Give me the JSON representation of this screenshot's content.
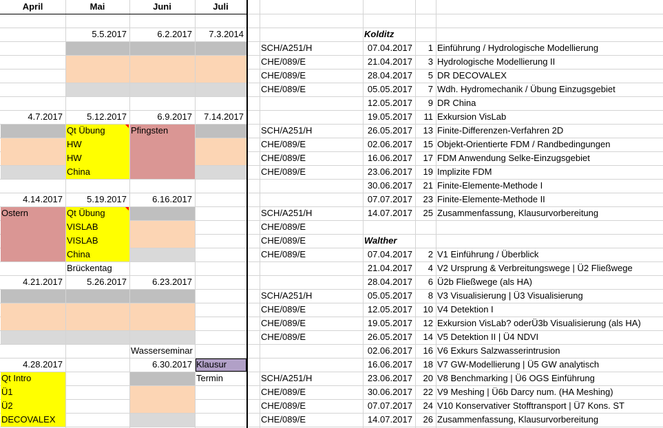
{
  "left_table": {
    "headers": [
      "April",
      "Mai",
      "Juni",
      "Juli"
    ],
    "dates": [
      {
        "row": 2,
        "col": 1,
        "text": "5.5.2017"
      },
      {
        "row": 2,
        "col": 2,
        "text": "6.2.2017"
      },
      {
        "row": 2,
        "col": 3,
        "text": "7.3.2014"
      },
      {
        "row": 8,
        "col": 0,
        "text": "4.7.2017"
      },
      {
        "row": 8,
        "col": 1,
        "text": "5.12.2017"
      },
      {
        "row": 8,
        "col": 2,
        "text": "6.9.2017"
      },
      {
        "row": 8,
        "col": 3,
        "text": "7.14.2017"
      },
      {
        "row": 14,
        "col": 0,
        "text": "4.14.2017"
      },
      {
        "row": 14,
        "col": 1,
        "text": "5.19.2017"
      },
      {
        "row": 14,
        "col": 2,
        "text": "6.16.2017"
      },
      {
        "row": 20,
        "col": 0,
        "text": "4.21.2017"
      },
      {
        "row": 20,
        "col": 1,
        "text": "5.26.2017"
      },
      {
        "row": 20,
        "col": 2,
        "text": "6.23.2017"
      },
      {
        "row": 26,
        "col": 0,
        "text": "4.28.2017"
      },
      {
        "row": 26,
        "col": 2,
        "text": "6.30.2017"
      }
    ],
    "labels": [
      {
        "row": 9,
        "col": 1,
        "text": "Qt Übung"
      },
      {
        "row": 10,
        "col": 1,
        "text": "HW"
      },
      {
        "row": 11,
        "col": 1,
        "text": "HW"
      },
      {
        "row": 12,
        "col": 1,
        "text": "China"
      },
      {
        "row": 9,
        "col": 2,
        "text": "Pfingsten"
      },
      {
        "row": 15,
        "col": 0,
        "text": "Ostern"
      },
      {
        "row": 15,
        "col": 1,
        "text": "Qt Übung"
      },
      {
        "row": 16,
        "col": 1,
        "text": "VISLAB"
      },
      {
        "row": 17,
        "col": 1,
        "text": "VISLAB"
      },
      {
        "row": 18,
        "col": 1,
        "text": "China"
      },
      {
        "row": 19,
        "col": 1,
        "text": "Brückentag"
      },
      {
        "row": 25,
        "col": 2,
        "text": "Wasserseminar"
      },
      {
        "row": 26,
        "col": 3,
        "text": "Klausur"
      },
      {
        "row": 27,
        "col": 3,
        "text": "Termin"
      },
      {
        "row": 27,
        "col": 0,
        "text": "Qt Intro"
      },
      {
        "row": 28,
        "col": 0,
        "text": "Ü1"
      },
      {
        "row": 29,
        "col": 0,
        "text": "Ü2"
      },
      {
        "row": 30,
        "col": 0,
        "text": "DECOVALEX"
      }
    ],
    "fill_colors": {
      "grey": "#bfbfbf",
      "peach": "#fcd5b4",
      "light_grey": "#d9d9d9",
      "yellow": "#ffff00",
      "rose": "#da9694",
      "purple": "#b1a0c7"
    }
  },
  "kolditz": {
    "title": "Kolditz",
    "rows": [
      {
        "room": "SCH/A251/H",
        "date": "07.04.2017",
        "num": "1",
        "topic": "Einführung / Hydrologische Modellierung"
      },
      {
        "room": "CHE/089/E",
        "date": "21.04.2017",
        "num": "3",
        "topic": "Hydrologische Modellierung II"
      },
      {
        "room": "CHE/089/E",
        "date": "28.04.2017",
        "num": "5",
        "topic": "DR DECOVALEX"
      },
      {
        "room": "CHE/089/E",
        "date": "05.05.2017",
        "num": "7",
        "topic": "Wdh. Hydromechanik / Übung Einzugsgebiet"
      },
      {
        "room": "",
        "date": "12.05.2017",
        "num": "9",
        "topic": "DR China"
      },
      {
        "room": "",
        "date": "19.05.2017",
        "num": "11",
        "topic": "Exkursion VisLab"
      },
      {
        "room": "SCH/A251/H",
        "date": "26.05.2017",
        "num": "13",
        "topic": "Finite-Differenzen-Verfahren 2D"
      },
      {
        "room": "CHE/089/E",
        "date": "02.06.2017",
        "num": "15",
        "topic": "Objekt-Orientierte FDM / Randbedingungen"
      },
      {
        "room": "CHE/089/E",
        "date": "16.06.2017",
        "num": "17",
        "topic": "FDM Anwendung Selke-Einzugsgebiet"
      },
      {
        "room": "CHE/089/E",
        "date": "23.06.2017",
        "num": "19",
        "topic": "Implizite FDM"
      },
      {
        "room": "",
        "date": "30.06.2017",
        "num": "21",
        "topic": "Finite-Elemente-Methode I"
      },
      {
        "room": "",
        "date": "07.07.2017",
        "num": "23",
        "topic": "Finite-Elemente-Methode II"
      },
      {
        "room": "SCH/A251/H",
        "date": "14.07.2017",
        "num": "25",
        "topic": "Zusammenfassung, Klausurvorbereitung"
      }
    ],
    "extra_rooms": [
      "CHE/089/E",
      "CHE/089/E",
      "CHE/089/E"
    ]
  },
  "walther": {
    "title": "Walther",
    "rows": [
      {
        "room": "",
        "date": "07.04.2017",
        "num": "2",
        "topic": "V1 Einführung / Überblick"
      },
      {
        "room": "",
        "date": "21.04.2017",
        "num": "4",
        "topic": "V2 Ursprung & Verbreitungswege | Ü2 Fließwege"
      },
      {
        "room": "",
        "date": "28.04.2017",
        "num": "6",
        "topic": "Ü2b Fließwege (als HA)"
      },
      {
        "room": "SCH/A251/H",
        "date": "05.05.2017",
        "num": "8",
        "topic": "V3 Visualisierung | Ü3 Visualisierung"
      },
      {
        "room": "CHE/089/E",
        "date": "12.05.2017",
        "num": "10",
        "topic": "V4 Detektion I"
      },
      {
        "room": "CHE/089/E",
        "date": "19.05.2017",
        "num": "12",
        "topic": "Exkursion VisLab? oderÜ3b Visualisierung (als HA)"
      },
      {
        "room": "CHE/089/E",
        "date": "26.05.2017",
        "num": "14",
        "topic": "V5 Detektion II | Ü4 NDVI"
      },
      {
        "room": "",
        "date": "02.06.2017",
        "num": "16",
        "topic": "V6 Exkurs Salzwasserintrusion"
      },
      {
        "room": "",
        "date": "16.06.2017",
        "num": "18",
        "topic": "V7 GW-Modellierung | Ü5 GW analytisch"
      },
      {
        "room": "SCH/A251/H",
        "date": "23.06.2017",
        "num": "20",
        "topic": "V8 Benchmarking | Ü6 OGS Einführung"
      },
      {
        "room": "CHE/089/E",
        "date": "30.06.2017",
        "num": "22",
        "topic": "V9 Meshing | Ü6b Darcy num. (HA Meshing)"
      },
      {
        "room": "CHE/089/E",
        "date": "07.07.2017",
        "num": "24",
        "topic": "V10 Konservativer Stofftransport | Ü7 Kons. ST"
      },
      {
        "room": "CHE/089/E",
        "date": "14.07.2017",
        "num": "26",
        "topic": "Zusammenfassung, Klausurvorbereitung"
      }
    ]
  }
}
